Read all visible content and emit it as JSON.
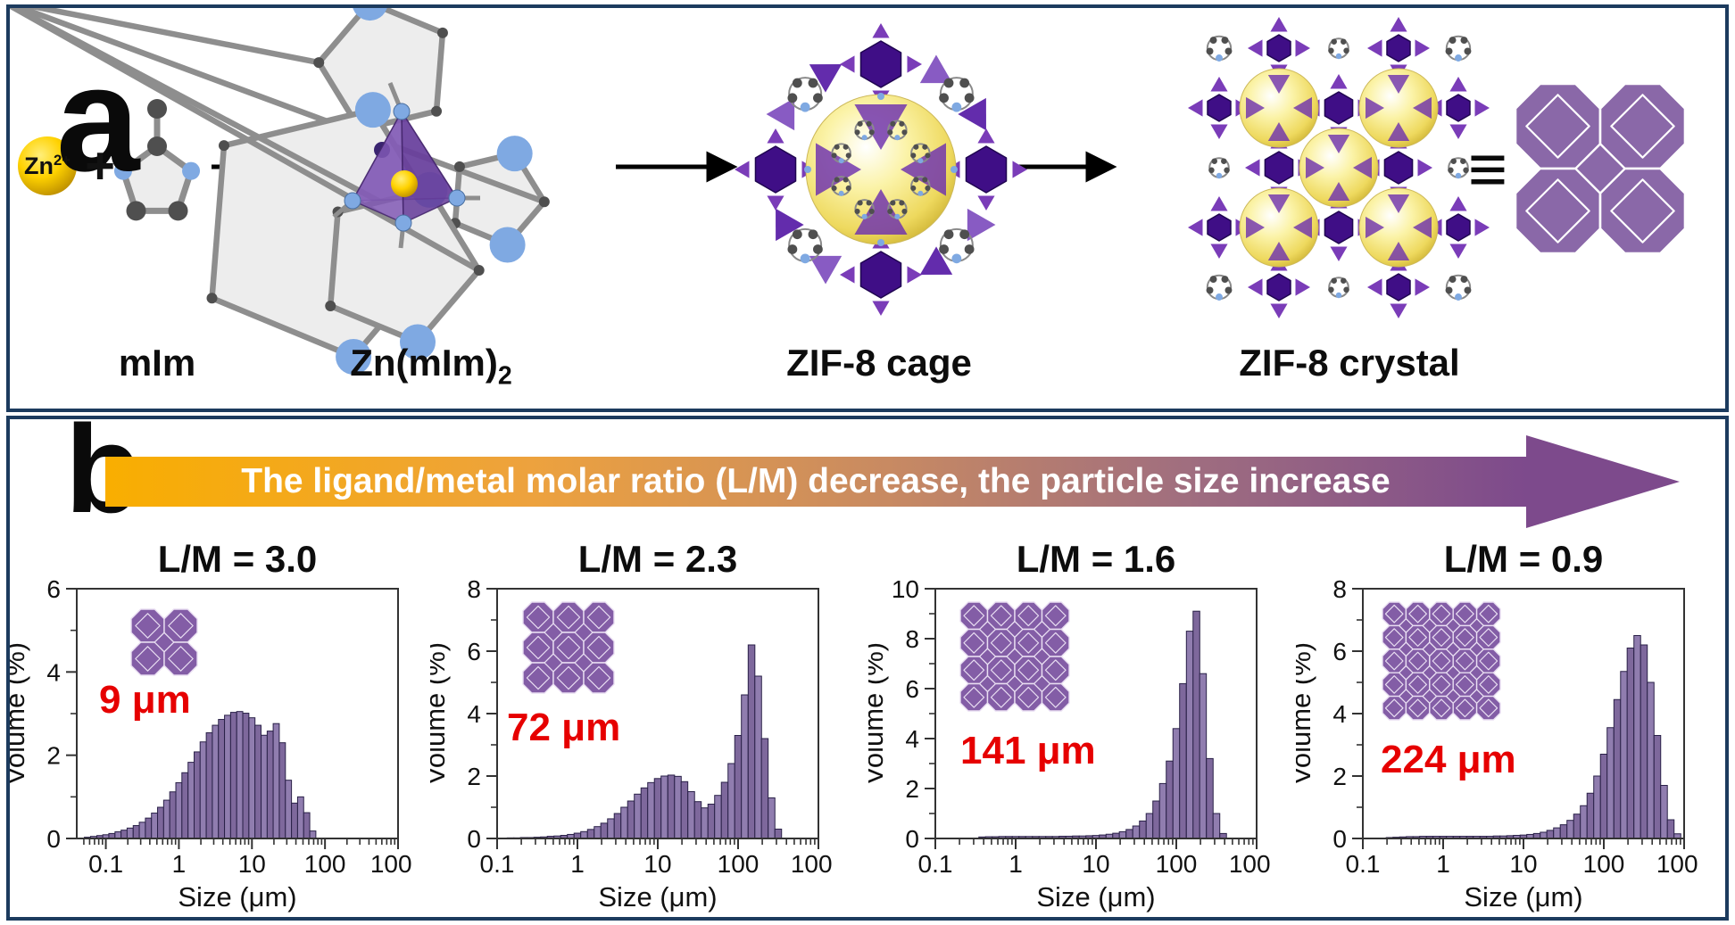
{
  "panel_a": {
    "label": "a",
    "zn_base": "Zn",
    "zn_charge": "2+",
    "plus_sign": "+",
    "equiv_sign": "≡",
    "step_labels": {
      "mim": "mIm",
      "znmim2_main": "Zn(mIm)",
      "znmim2_sub": "2",
      "cage": "ZIF-8 cage",
      "crystal": "ZIF-8 crystal"
    }
  },
  "panel_b": {
    "label": "b",
    "banner_text": "The ligand/metal molar ratio (L/M) decrease, the particle size increase"
  },
  "colors": {
    "frame_navy": "#1c3b5e",
    "banner_gold": "#f9ae00",
    "banner_purple": "#7d4a8c",
    "bar_fill": "#7e689c",
    "bar_fill_alt": "#907daf",
    "bar_stroke": "#2a2148",
    "tile_purple": "#835da6",
    "tile_line": "#e9def2",
    "red_label": "#e60000",
    "sphere_yellow": "#f5e17a",
    "dark_node_purple": "#3f0e86",
    "tetra_purple": "#7a3cb8",
    "nitrogen_blue": "#7fa9e2",
    "carbon_gray": "#4f4f4f"
  },
  "chart_data": [
    {
      "type": "bar",
      "title": "L/M = 3.0",
      "size_label": "9 μm",
      "inset_grid": 2,
      "xlabel": "Size (μm)",
      "ylabel": "Volume (%)",
      "xscale": "log",
      "xlim": [
        0.04,
        1000
      ],
      "ylim": [
        0,
        6
      ],
      "yticks": [
        0,
        2,
        4,
        6
      ],
      "xtick_labels": [
        "0.1",
        "1",
        "10",
        "100",
        "1000"
      ],
      "sizes": [
        0.056,
        0.068,
        0.083,
        0.1,
        0.121,
        0.147,
        0.178,
        0.215,
        0.261,
        0.316,
        0.383,
        0.464,
        0.562,
        0.681,
        0.825,
        1,
        1.21,
        1.47,
        1.78,
        2.15,
        2.61,
        3.16,
        3.83,
        4.64,
        5.62,
        6.81,
        8.25,
        10,
        12.1,
        14.7,
        17.8,
        21.5,
        26.1,
        31.6,
        38.3,
        46.4,
        56.2,
        68.1
      ],
      "values": [
        0.03,
        0.05,
        0.07,
        0.09,
        0.12,
        0.16,
        0.2,
        0.25,
        0.31,
        0.39,
        0.49,
        0.61,
        0.75,
        0.92,
        1.12,
        1.34,
        1.58,
        1.83,
        2.08,
        2.32,
        2.54,
        2.72,
        2.86,
        2.96,
        3.03,
        3.05,
        3.01,
        2.9,
        2.72,
        2.48,
        2.58,
        2.76,
        2.3,
        1.4,
        0.85,
        1.0,
        0.62,
        0.18
      ]
    },
    {
      "type": "bar",
      "title": "L/M = 2.3",
      "size_label": "72 μm",
      "inset_grid": 3,
      "xlabel": "Size (μm)",
      "ylabel": "Volume (%)",
      "xscale": "log",
      "xlim": [
        0.1,
        1000
      ],
      "ylim": [
        0,
        8
      ],
      "yticks": [
        0,
        2,
        4,
        6,
        8
      ],
      "xtick_labels": [
        "0.1",
        "1",
        "10",
        "100",
        "1000"
      ],
      "sizes": [
        0.147,
        0.178,
        0.215,
        0.261,
        0.316,
        0.383,
        0.464,
        0.562,
        0.681,
        0.825,
        1,
        1.21,
        1.47,
        1.78,
        2.15,
        2.61,
        3.16,
        3.83,
        4.64,
        5.62,
        6.81,
        8.25,
        10,
        12.1,
        14.7,
        17.8,
        21.5,
        26.1,
        31.6,
        38.3,
        46.4,
        56.2,
        68.1,
        82.5,
        100,
        121,
        147,
        178,
        215,
        261,
        316
      ],
      "values": [
        0.02,
        0.02,
        0.03,
        0.03,
        0.04,
        0.05,
        0.07,
        0.08,
        0.1,
        0.13,
        0.17,
        0.22,
        0.29,
        0.38,
        0.49,
        0.63,
        0.8,
        1.0,
        1.2,
        1.42,
        1.62,
        1.79,
        1.92,
        2.0,
        2.03,
        1.99,
        1.82,
        1.5,
        1.18,
        0.98,
        1.1,
        1.38,
        1.8,
        2.4,
        3.3,
        4.6,
        6.2,
        5.2,
        3.2,
        1.3,
        0.3
      ]
    },
    {
      "type": "bar",
      "title": "L/M = 1.6",
      "size_label": "141 μm",
      "inset_grid": 4,
      "xlabel": "Size (μm)",
      "ylabel": "Volume (%)",
      "xscale": "log",
      "xlim": [
        0.1,
        1000
      ],
      "ylim": [
        0,
        10
      ],
      "yticks": [
        0,
        2,
        4,
        6,
        8,
        10
      ],
      "xtick_labels": [
        "0.1",
        "1",
        "10",
        "100",
        "1000"
      ],
      "sizes": [
        0.383,
        0.464,
        0.562,
        0.681,
        0.825,
        1,
        1.21,
        1.47,
        1.78,
        2.15,
        2.61,
        3.16,
        3.83,
        4.64,
        5.62,
        6.81,
        8.25,
        10,
        12.1,
        14.7,
        17.8,
        21.5,
        26.1,
        31.6,
        38.3,
        46.4,
        56.2,
        68.1,
        82.5,
        100,
        121,
        147,
        178,
        215,
        261,
        316,
        383
      ],
      "values": [
        0.06,
        0.07,
        0.07,
        0.08,
        0.08,
        0.08,
        0.08,
        0.08,
        0.08,
        0.08,
        0.08,
        0.08,
        0.09,
        0.09,
        0.1,
        0.1,
        0.11,
        0.12,
        0.14,
        0.17,
        0.21,
        0.27,
        0.36,
        0.5,
        0.7,
        1.0,
        1.5,
        2.2,
        3.1,
        4.4,
        6.2,
        8.3,
        9.1,
        6.6,
        3.2,
        1.0,
        0.2
      ]
    },
    {
      "type": "bar",
      "title": "L/M = 0.9",
      "size_label": "224 μm",
      "inset_grid": 5,
      "xlabel": "Size (μm)",
      "ylabel": "Volume (%)",
      "xscale": "log",
      "xlim": [
        0.1,
        1000
      ],
      "ylim": [
        0,
        8
      ],
      "yticks": [
        0,
        2,
        4,
        6,
        8
      ],
      "xtick_labels": [
        "0.1",
        "1",
        "10",
        "100",
        "1000"
      ],
      "sizes": [
        0.215,
        0.261,
        0.316,
        0.383,
        0.464,
        0.562,
        0.681,
        0.825,
        1,
        1.21,
        1.47,
        1.78,
        2.15,
        2.61,
        3.16,
        3.83,
        4.64,
        5.62,
        6.81,
        8.25,
        10,
        12.1,
        14.7,
        17.8,
        21.5,
        26.1,
        31.6,
        38.3,
        46.4,
        56.2,
        68.1,
        82.5,
        100,
        121,
        147,
        178,
        215,
        261,
        316,
        383,
        464,
        562,
        681,
        825
      ],
      "values": [
        0.03,
        0.04,
        0.05,
        0.06,
        0.06,
        0.07,
        0.07,
        0.07,
        0.07,
        0.07,
        0.07,
        0.07,
        0.07,
        0.07,
        0.07,
        0.07,
        0.08,
        0.08,
        0.09,
        0.1,
        0.11,
        0.13,
        0.16,
        0.2,
        0.26,
        0.34,
        0.44,
        0.58,
        0.78,
        1.05,
        1.45,
        2.0,
        2.7,
        3.55,
        4.45,
        5.35,
        6.1,
        6.5,
        6.2,
        5.0,
        3.3,
        1.7,
        0.6,
        0.15
      ]
    }
  ]
}
